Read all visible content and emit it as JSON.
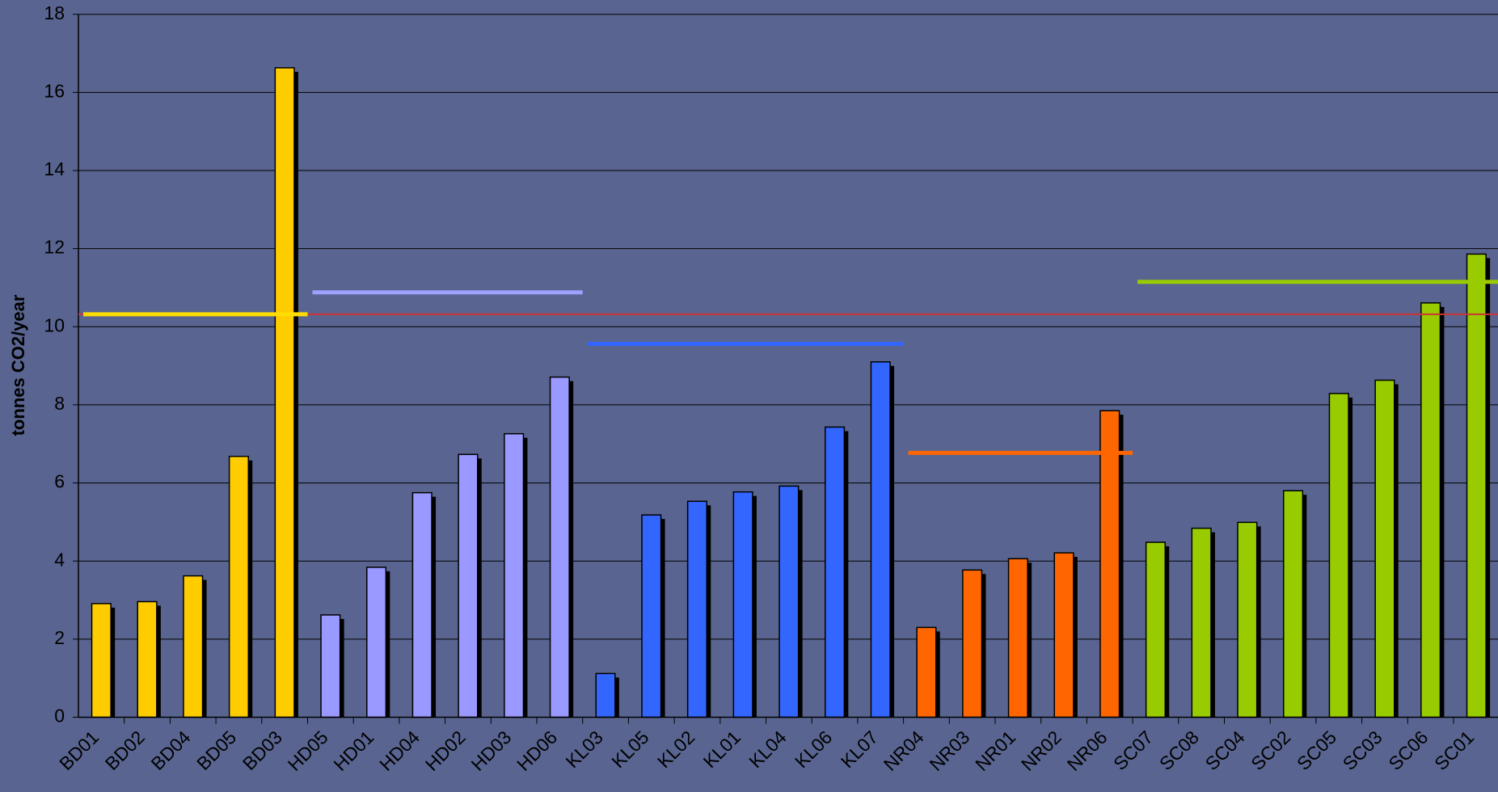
{
  "chart_data": {
    "type": "bar",
    "y_label": "tonnes CO2/year",
    "categories": [
      "BD01",
      "BD02",
      "BD04",
      "BD05",
      "BD03",
      "HD05",
      "HD01",
      "HD04",
      "HD02",
      "HD03",
      "HD06",
      "KL03",
      "KL05",
      "KL02",
      "KL01",
      "KL04",
      "KL06",
      "KL07",
      "NR04",
      "NR03",
      "NR01",
      "NR02",
      "NR06",
      "SC07",
      "SC08",
      "SC04",
      "SC02",
      "SC05",
      "SC03",
      "SC06",
      "SC01"
    ],
    "values": [
      2.91,
      2.96,
      3.62,
      6.68,
      16.63,
      2.62,
      3.84,
      5.75,
      6.73,
      7.26,
      8.71,
      1.12,
      5.18,
      5.53,
      5.77,
      5.92,
      7.43,
      9.1,
      2.3,
      3.77,
      4.06,
      4.21,
      7.85,
      4.48,
      4.84,
      4.99,
      5.8,
      8.29,
      8.63,
      10.61,
      11.86
    ],
    "colors": [
      "#ffcc00",
      "#ffcc00",
      "#ffcc00",
      "#ffcc00",
      "#ffcc00",
      "#9999ff",
      "#9999ff",
      "#9999ff",
      "#9999ff",
      "#9999ff",
      "#9999ff",
      "#3366ff",
      "#3366ff",
      "#3366ff",
      "#3366ff",
      "#3366ff",
      "#3366ff",
      "#3366ff",
      "#ff6600",
      "#ff6600",
      "#ff6600",
      "#ff6600",
      "#ff6600",
      "#99cc00",
      "#99cc00",
      "#99cc00",
      "#99cc00",
      "#99cc00",
      "#99cc00",
      "#99cc00",
      "#99cc00"
    ],
    "overall_average": {
      "value": 10.32,
      "color": "#cc3333"
    },
    "group_averages": [
      {
        "value": 10.32,
        "color": "#ffdd00",
        "span": [
          0,
          4
        ]
      },
      {
        "value": 10.88,
        "color": "#a0a0ff",
        "span": [
          5,
          10
        ]
      },
      {
        "value": 9.56,
        "color": "#3366ff",
        "span": [
          11,
          17
        ]
      },
      {
        "value": 6.77,
        "color": "#ff6600",
        "span": [
          18,
          22
        ]
      },
      {
        "value": 11.15,
        "color": "#99cc00",
        "span": [
          23,
          30
        ]
      }
    ],
    "ylim": [
      0,
      18
    ],
    "yticks": [
      0,
      2,
      4,
      6,
      8,
      10,
      12,
      14,
      16,
      18
    ],
    "grid": true
  }
}
